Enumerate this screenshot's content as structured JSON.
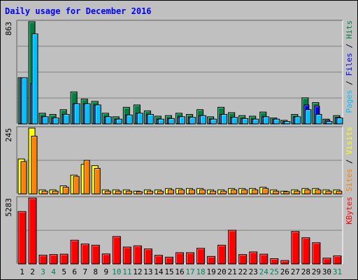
{
  "chart_data": {
    "type": "bar",
    "title": "Daily usage for December 2016",
    "categories": [
      "1",
      "2",
      "3",
      "4",
      "5",
      "6",
      "7",
      "8",
      "9",
      "10",
      "11",
      "12",
      "13",
      "14",
      "15",
      "16",
      "17",
      "18",
      "19",
      "20",
      "21",
      "22",
      "23",
      "24",
      "25",
      "26",
      "27",
      "28",
      "29",
      "30",
      "31"
    ],
    "weekend_days": [
      "3",
      "4",
      "10",
      "11",
      "17",
      "18",
      "24",
      "25",
      "31"
    ],
    "panels": [
      {
        "id": "hits",
        "max_label": "863",
        "ymax": 863,
        "right_label": [
          {
            "text": "Pages",
            "color": "#00c0ff"
          },
          {
            "text": " / ",
            "color": "#000000"
          },
          {
            "text": "Files",
            "color": "#0000ff"
          },
          {
            "text": " / ",
            "color": "#000000"
          },
          {
            "text": "Hits",
            "color": "#008040"
          }
        ],
        "series": [
          {
            "name": "Hits",
            "color": "#008040",
            "values": [
              390,
              863,
              90,
              80,
              120,
              270,
              210,
              190,
              90,
              60,
              140,
              160,
              110,
              65,
              70,
              90,
              80,
              120,
              60,
              140,
              95,
              70,
              65,
              100,
              50,
              30,
              80,
              220,
              180,
              40,
              70
            ]
          },
          {
            "name": "Files",
            "color": "#0000ff",
            "values": [
              390,
              340,
              60,
              50,
              80,
              170,
              170,
              160,
              60,
              40,
              75,
              90,
              80,
              40,
              45,
              60,
              55,
              70,
              40,
              80,
              55,
              45,
              40,
              60,
              40,
              20,
              60,
              160,
              150,
              30,
              55
            ]
          },
          {
            "name": "Pages",
            "color": "#00c0ff",
            "values": [
              390,
              760,
              60,
              50,
              80,
              170,
              170,
              160,
              60,
              40,
              75,
              90,
              80,
              40,
              45,
              60,
              55,
              70,
              40,
              80,
              55,
              45,
              40,
              60,
              40,
              20,
              60,
              120,
              80,
              20,
              50
            ]
          }
        ]
      },
      {
        "id": "visits",
        "max_label": "245",
        "ymax": 245,
        "right_label": [
          {
            "text": "Sites",
            "color": "#ff8000"
          },
          {
            "text": " / ",
            "color": "#000000"
          },
          {
            "text": "Visits",
            "color": "#ffff00"
          }
        ],
        "series": [
          {
            "name": "Visits",
            "color": "#ffff00",
            "values": [
              130,
              245,
              15,
              15,
              30,
              70,
              110,
              105,
              15,
              15,
              15,
              10,
              15,
              15,
              20,
              20,
              20,
              20,
              15,
              15,
              20,
              20,
              20,
              25,
              15,
              10,
              15,
              20,
              20,
              15,
              15
            ]
          },
          {
            "name": "Sites",
            "color": "#ff8000",
            "values": [
              120,
              215,
              10,
              10,
              25,
              65,
              125,
              95,
              10,
              10,
              10,
              8,
              10,
              10,
              15,
              15,
              15,
              15,
              10,
              10,
              15,
              15,
              15,
              20,
              10,
              8,
              10,
              15,
              15,
              10,
              10
            ]
          }
        ]
      },
      {
        "id": "kbytes",
        "max_label": "5283",
        "ymax": 5283,
        "right_label": [
          {
            "text": "KBytes",
            "color": "#ff0000"
          }
        ],
        "series": [
          {
            "name": "KBytes",
            "color": "#ff0000",
            "values": [
              4200,
              5283,
              700,
              750,
              780,
              1900,
              1600,
              1500,
              800,
              2200,
              1350,
              1450,
              1200,
              690,
              540,
              900,
              900,
              1250,
              600,
              1500,
              2700,
              750,
              960,
              780,
              420,
              270,
              2600,
              2100,
              1700,
              460,
              640
            ]
          }
        ]
      }
    ]
  }
}
